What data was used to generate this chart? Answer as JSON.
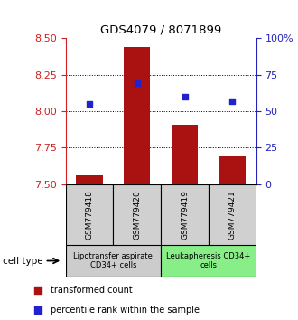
{
  "title": "GDS4079 / 8071899",
  "samples": [
    "GSM779418",
    "GSM779420",
    "GSM779419",
    "GSM779421"
  ],
  "bar_values": [
    7.56,
    8.44,
    7.91,
    7.69
  ],
  "bar_bottom": 7.5,
  "percentile_values": [
    8.05,
    8.19,
    8.1,
    8.07
  ],
  "ylim": [
    7.5,
    8.5
  ],
  "yticks_left": [
    7.5,
    7.75,
    8.0,
    8.25,
    8.5
  ],
  "yticks_right": [
    0,
    25,
    50,
    75,
    100
  ],
  "bar_color": "#aa1111",
  "percentile_color": "#2222cc",
  "group1_label": "Lipotransfer aspirate\nCD34+ cells",
  "group2_label": "Leukapheresis CD34+\ncells",
  "group1_color": "#cccccc",
  "group2_color": "#88ee88",
  "cell_type_label": "cell type",
  "legend_bar_label": "transformed count",
  "legend_pct_label": "percentile rank within the sample",
  "marker_size": 5,
  "gridline_values": [
    7.75,
    8.0,
    8.25
  ]
}
